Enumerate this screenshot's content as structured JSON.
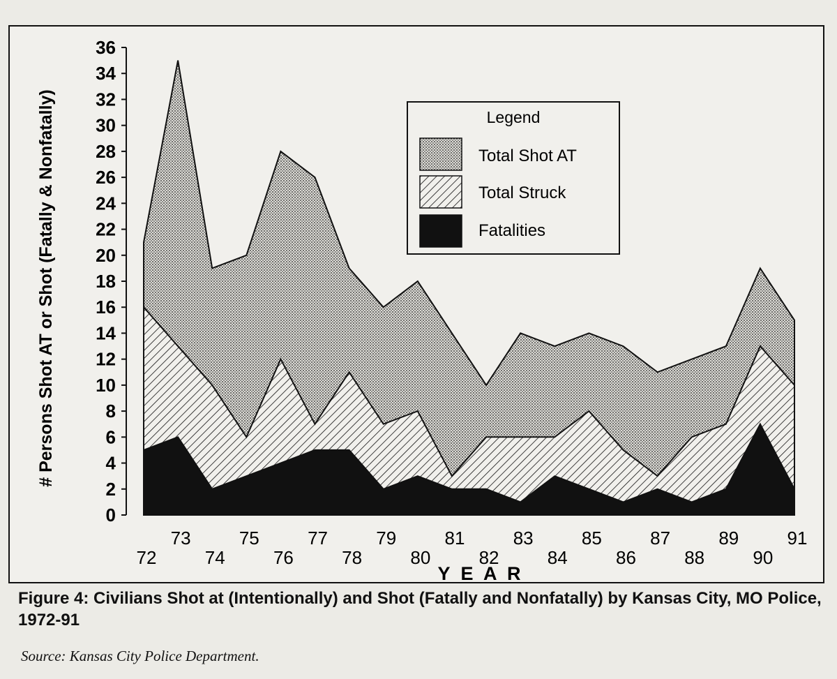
{
  "caption": {
    "figure_label": "Figure 4:",
    "text": "Civilians Shot at (Intentionally) and Shot (Fatally and Nonfatally) by Kansas City, MO Police, 1972-91"
  },
  "source": "Source: Kansas City Police Department.",
  "chart_data": {
    "type": "area",
    "xlabel": "Y E A R",
    "ylabel": "# Persons Shot AT or Shot (Fatally & Nonfatally)",
    "ylim": [
      0,
      36
    ],
    "yticks": [
      0,
      2,
      4,
      6,
      8,
      10,
      12,
      14,
      16,
      18,
      20,
      22,
      24,
      26,
      28,
      30,
      32,
      34,
      36
    ],
    "categories": [
      "72",
      "73",
      "74",
      "75",
      "76",
      "77",
      "78",
      "79",
      "80",
      "81",
      "82",
      "83",
      "84",
      "85",
      "86",
      "87",
      "88",
      "89",
      "90",
      "91"
    ],
    "legend": {
      "title": "Legend",
      "position": "top-right"
    },
    "grid": false,
    "series": [
      {
        "name": "Total Shot AT",
        "pattern": "dotted",
        "values": [
          21,
          35,
          19,
          20,
          28,
          26,
          19,
          16,
          18,
          14,
          10,
          14,
          13,
          14,
          13,
          11,
          12,
          13,
          19,
          15
        ]
      },
      {
        "name": "Total Struck",
        "pattern": "hatched",
        "values": [
          16,
          13,
          10,
          6,
          12,
          7,
          11,
          7,
          8,
          3,
          6,
          6,
          6,
          8,
          5,
          3,
          6,
          7,
          13,
          10
        ]
      },
      {
        "name": "Fatalities",
        "pattern": "solid-black",
        "values": [
          5,
          6,
          2,
          3,
          4,
          5,
          5,
          2,
          3,
          2,
          2,
          1,
          3,
          2,
          1,
          2,
          1,
          2,
          7,
          2
        ]
      }
    ]
  }
}
